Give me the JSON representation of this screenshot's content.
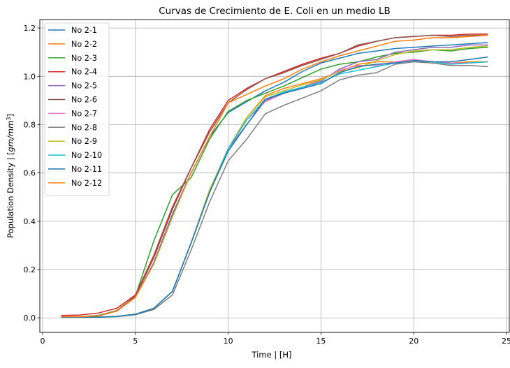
{
  "chart_data": {
    "type": "line",
    "title": "Curvas de Crecimiento de E. Coli en un medio LB",
    "xlabel": "Time | [H]",
    "ylabel_prefix": "Population Density | [",
    "ylabel_math": "gm/mm",
    "ylabel_sup": "3",
    "ylabel_suffix": "]",
    "xlim": [
      -0.15,
      25.15
    ],
    "ylim": [
      -0.06,
      1.235
    ],
    "xticks": [
      0,
      5,
      10,
      15,
      20,
      25
    ],
    "yticks": [
      0.0,
      0.2,
      0.4,
      0.6,
      0.8,
      1.0,
      1.2
    ],
    "grid": true,
    "legend_position": "top-left",
    "x": [
      1,
      2,
      3,
      4,
      5,
      6,
      7,
      8,
      9,
      10,
      11,
      12,
      13,
      14,
      15,
      16,
      17,
      18,
      19,
      20,
      21,
      22,
      23,
      24
    ],
    "series": [
      {
        "name": "No 2-1",
        "color": "#1f77b4",
        "values": [
          0.005,
          0.005,
          0.008,
          0.03,
          0.085,
          0.23,
          0.43,
          0.6,
          0.75,
          0.85,
          0.895,
          0.94,
          0.975,
          1.02,
          1.055,
          1.075,
          1.095,
          1.105,
          1.115,
          1.12,
          1.125,
          1.13,
          1.135,
          1.14
        ]
      },
      {
        "name": "No 2-2",
        "color": "#ff7f0e",
        "values": [
          0.003,
          0.003,
          0.003,
          0.006,
          0.015,
          0.04,
          0.11,
          0.31,
          0.53,
          0.7,
          0.83,
          0.92,
          0.95,
          0.97,
          0.99,
          1.02,
          1.05,
          1.06,
          1.06,
          1.065,
          1.06,
          1.055,
          1.06,
          1.06
        ]
      },
      {
        "name": "No 2-3",
        "color": "#2ca02c",
        "values": [
          0.005,
          0.005,
          0.01,
          0.03,
          0.09,
          0.32,
          0.51,
          0.58,
          0.74,
          0.855,
          0.9,
          0.93,
          0.96,
          0.995,
          1.03,
          1.05,
          1.06,
          1.08,
          1.095,
          1.1,
          1.11,
          1.105,
          1.115,
          1.12
        ]
      },
      {
        "name": "No 2-4",
        "color": "#d62728",
        "values": [
          0.01,
          0.012,
          0.02,
          0.04,
          0.095,
          0.26,
          0.46,
          0.62,
          0.78,
          0.9,
          0.95,
          0.99,
          1.02,
          1.05,
          1.075,
          1.095,
          1.125,
          1.145,
          1.16,
          1.165,
          1.17,
          1.17,
          1.175,
          1.175
        ]
      },
      {
        "name": "No 2-5",
        "color": "#9467bd",
        "values": [
          0.003,
          0.003,
          0.003,
          0.006,
          0.015,
          0.04,
          0.11,
          0.31,
          0.52,
          0.7,
          0.8,
          0.9,
          0.93,
          0.955,
          0.98,
          1.03,
          1.06,
          1.07,
          1.1,
          1.11,
          1.12,
          1.12,
          1.13,
          1.13
        ]
      },
      {
        "name": "No 2-6",
        "color": "#8c564b",
        "values": [
          0.005,
          0.005,
          0.008,
          0.03,
          0.09,
          0.25,
          0.45,
          0.62,
          0.77,
          0.89,
          0.945,
          0.99,
          1.015,
          1.045,
          1.07,
          1.095,
          1.13,
          1.145,
          1.16,
          1.165,
          1.17,
          1.165,
          1.17,
          1.17
        ]
      },
      {
        "name": "No 2-7",
        "color": "#e377c2",
        "values": [
          0.003,
          0.003,
          0.003,
          0.006,
          0.015,
          0.04,
          0.11,
          0.31,
          0.53,
          0.7,
          0.82,
          0.895,
          0.93,
          0.955,
          0.985,
          1.025,
          1.045,
          1.045,
          1.06,
          1.07,
          1.06,
          1.055,
          1.055,
          1.06
        ]
      },
      {
        "name": "No 2-8",
        "color": "#7f7f7f",
        "values": [
          0.003,
          0.003,
          0.003,
          0.005,
          0.013,
          0.035,
          0.095,
          0.28,
          0.48,
          0.65,
          0.74,
          0.845,
          0.88,
          0.91,
          0.94,
          0.985,
          1.005,
          1.015,
          1.05,
          1.06,
          1.055,
          1.045,
          1.045,
          1.04
        ]
      },
      {
        "name": "No 2-9",
        "color": "#bcbd22",
        "values": [
          0.003,
          0.003,
          0.003,
          0.006,
          0.015,
          0.04,
          0.11,
          0.31,
          0.53,
          0.7,
          0.83,
          0.915,
          0.94,
          0.965,
          0.985,
          1.02,
          1.035,
          1.065,
          1.09,
          1.105,
          1.11,
          1.11,
          1.12,
          1.125
        ]
      },
      {
        "name": "No 2-10",
        "color": "#17becf",
        "values": [
          0.003,
          0.003,
          0.003,
          0.006,
          0.015,
          0.04,
          0.11,
          0.31,
          0.52,
          0.7,
          0.82,
          0.905,
          0.935,
          0.955,
          0.975,
          1.01,
          1.025,
          1.04,
          1.055,
          1.065,
          1.06,
          1.05,
          1.055,
          1.06
        ]
      },
      {
        "name": "No 2-11",
        "color": "#1f77b4",
        "values": [
          0.003,
          0.003,
          0.003,
          0.006,
          0.015,
          0.04,
          0.11,
          0.31,
          0.52,
          0.69,
          0.8,
          0.905,
          0.93,
          0.95,
          0.97,
          1.015,
          1.04,
          1.05,
          1.055,
          1.065,
          1.06,
          1.06,
          1.07,
          1.08
        ]
      },
      {
        "name": "No 2-12",
        "color": "#ff7f0e",
        "values": [
          0.005,
          0.005,
          0.008,
          0.028,
          0.085,
          0.225,
          0.42,
          0.6,
          0.75,
          0.89,
          0.925,
          0.96,
          0.99,
          1.03,
          1.06,
          1.085,
          1.105,
          1.125,
          1.145,
          1.15,
          1.16,
          1.16,
          1.165,
          1.17
        ]
      }
    ]
  }
}
